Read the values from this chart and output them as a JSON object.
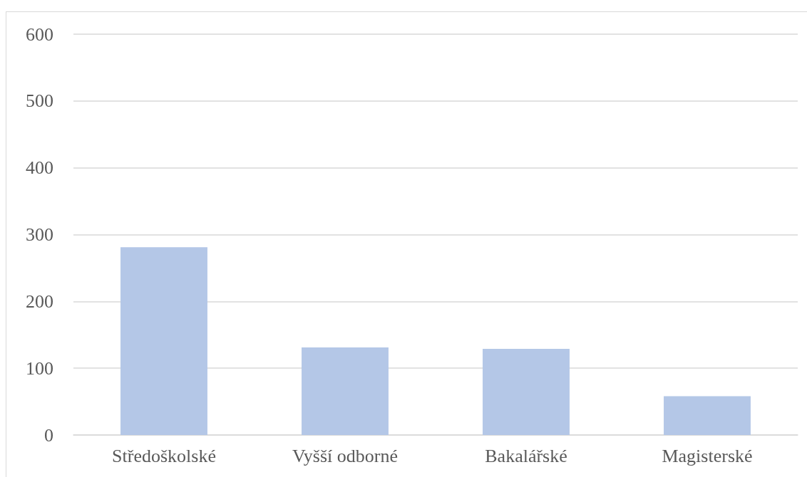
{
  "chart_data": {
    "type": "bar",
    "categories": [
      "Středoškolské",
      "Vyšší odborné",
      "Bakalářské",
      "Magisterské"
    ],
    "values": [
      281,
      131,
      129,
      58
    ],
    "color": "#b4c7e7",
    "ylim": [
      0,
      600
    ],
    "yticks": [
      0,
      100,
      200,
      300,
      400,
      500,
      600
    ],
    "grid": "y"
  }
}
